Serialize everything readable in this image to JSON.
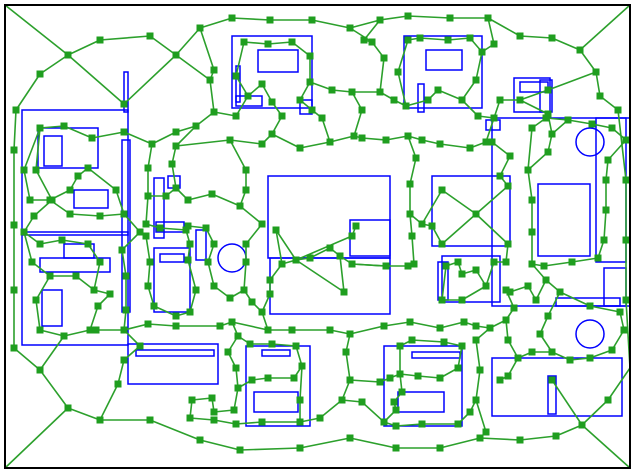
{
  "colors": {
    "background": "#ffffff",
    "frame": "#000000",
    "walls": "#0000ff",
    "graph_edges": "#2ca02c",
    "graph_nodes": "#1f9e1f"
  }
}
